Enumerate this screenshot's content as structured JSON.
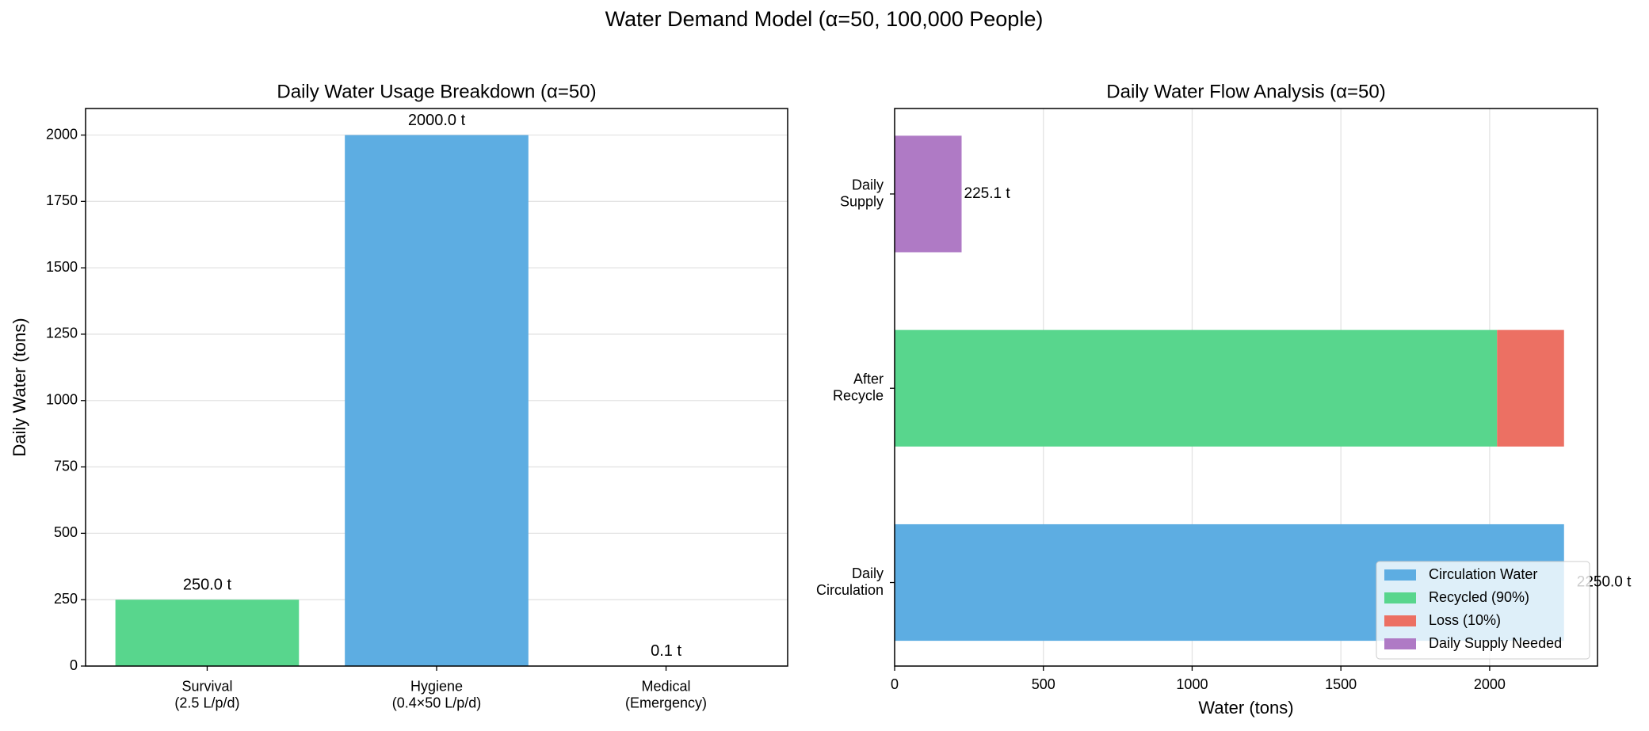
{
  "title": "Water Demand Model (α=50, 100,000 People)",
  "chart_data": [
    {
      "type": "bar",
      "title": "Daily Water Usage Breakdown (α=50)",
      "ylabel": "Daily Water (tons)",
      "categories": [
        "Survival\n(2.5 L/p/d)",
        "Hygiene\n(0.4×50 L/p/d)",
        "Medical\n(Emergency)"
      ],
      "values": [
        250,
        2000,
        0.1
      ],
      "value_labels": [
        "250.0 t",
        "2000.0 t",
        "0.1 t"
      ],
      "colors": [
        "#58d68d",
        "#5dade2",
        "#ec7063"
      ],
      "ylim": [
        0,
        2100
      ],
      "yticks": [
        0,
        250,
        500,
        750,
        1000,
        1250,
        1500,
        1750,
        2000
      ],
      "grid": true
    },
    {
      "type": "barh-stacked",
      "title": "Daily Water Flow Analysis (α=50)",
      "xlabel": "Water (tons)",
      "categories": [
        "Daily\nCirculation",
        "After\nRecycle",
        "Daily\nSupply"
      ],
      "series": [
        {
          "name": "Circulation Water",
          "color": "#5dade2",
          "values": [
            2250,
            null,
            null
          ],
          "value_labels": [
            "2250.0 t",
            null,
            null
          ]
        },
        {
          "name": "Recycled (90%)",
          "color": "#58d68d",
          "values": [
            null,
            2025,
            null
          ]
        },
        {
          "name": "Loss (10%)",
          "color": "#ec7063",
          "values": [
            null,
            225,
            null
          ]
        },
        {
          "name": "Daily Supply Needed",
          "color": "#af7ac5",
          "values": [
            null,
            null,
            225.1
          ],
          "value_labels": [
            null,
            null,
            "225.1 t"
          ]
        }
      ],
      "xlim": [
        0,
        2362.5
      ],
      "xticks": [
        0,
        500,
        1000,
        1500,
        2000
      ],
      "grid": true,
      "legend": "lower right"
    }
  ]
}
